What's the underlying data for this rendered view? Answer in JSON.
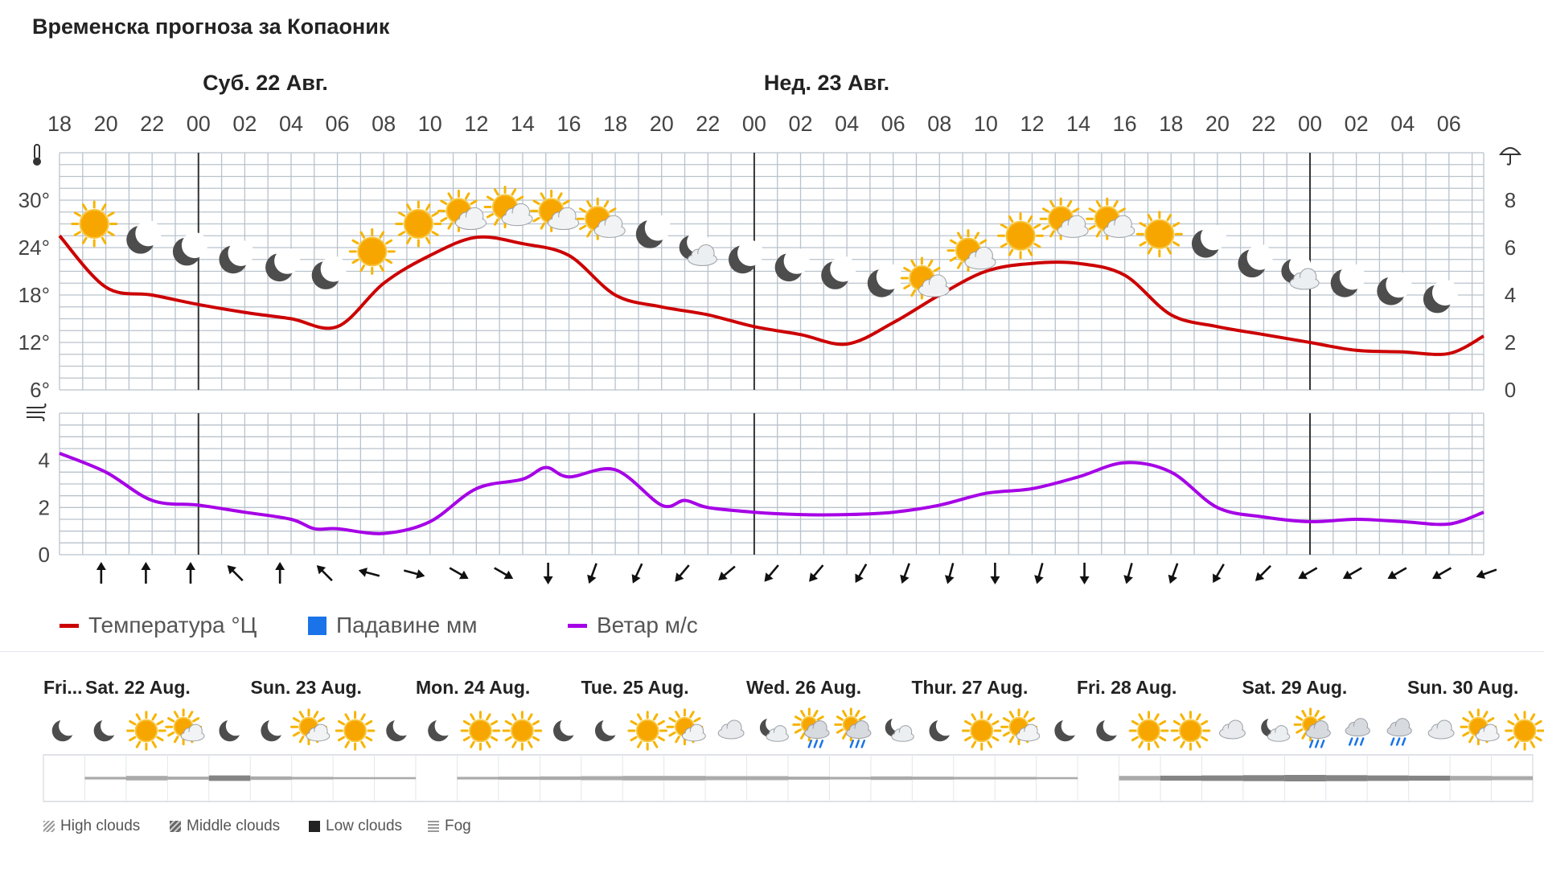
{
  "header": {
    "title": "Временска прогноза за Копаоник"
  },
  "chart_data": [
    {
      "type": "line",
      "name": "temperature",
      "day_labels": [
        {
          "label": "Суб. 22 Авг.",
          "after_hour_index": 3
        },
        {
          "label": "Нед. 23 Авг.",
          "after_hour_index": 15
        }
      ],
      "hour_labels": [
        "18",
        "20",
        "22",
        "00",
        "02",
        "04",
        "06",
        "08",
        "10",
        "12",
        "14",
        "16",
        "18",
        "20",
        "22",
        "00",
        "02",
        "04",
        "06",
        "08",
        "10",
        "12",
        "14",
        "16",
        "18",
        "20",
        "22",
        "00",
        "02",
        "04",
        "06"
      ],
      "x_hours": [
        0,
        2,
        4,
        6,
        8,
        10,
        12,
        14,
        16,
        18,
        20,
        22,
        24,
        26,
        28,
        30,
        32,
        34,
        36,
        38,
        40,
        42,
        44,
        46,
        48,
        50,
        52,
        54,
        56,
        58,
        60,
        61.5
      ],
      "y_temperature": [
        25.5,
        19,
        18,
        16.8,
        15.8,
        15,
        14,
        19.5,
        23,
        25.3,
        24.5,
        23,
        18,
        16.5,
        15.5,
        14,
        13,
        11.8,
        14.5,
        18,
        21,
        22,
        22,
        20.5,
        15.5,
        14,
        13,
        12,
        11,
        10.8,
        10.6,
        12.8
      ],
      "y_left_ticks": [
        "6°",
        "12°",
        "18°",
        "24°",
        "30°"
      ],
      "y_left_range": [
        6,
        36
      ],
      "y_right_ticks": [
        "0",
        "2",
        "4",
        "6",
        "8"
      ],
      "y_right_range": [
        0,
        10
      ],
      "precipitation": [],
      "weather_icons": [
        "sun",
        "moon",
        "moon",
        "moon",
        "moon",
        "moon",
        "sun",
        "sun",
        "sun-cloud",
        "sun-cloud",
        "sun-cloud",
        "sun-cloud",
        "moon",
        "moon-cloud",
        "moon",
        "moon",
        "moon",
        "moon",
        "sun-cloud",
        "sun-cloud",
        "sun",
        "sun-cloud",
        "sun-cloud",
        "sun",
        "moon",
        "moon",
        "moon-cloud",
        "moon",
        "moon",
        "moon"
      ],
      "icon_levels": [
        27,
        25,
        23.5,
        22.5,
        21.5,
        20.5,
        23.5,
        27,
        28,
        28.5,
        28,
        27,
        25.7,
        23.5,
        22.5,
        21.5,
        20.5,
        19.5,
        19.5,
        23,
        25.5,
        27,
        27,
        25.7,
        24.5,
        22,
        20.5,
        19.5,
        18.5,
        17.5
      ]
    },
    {
      "type": "line",
      "name": "wind",
      "x_hours": [
        0,
        2,
        4,
        6,
        8,
        10,
        11,
        12,
        14,
        16,
        18,
        20,
        21,
        22,
        24,
        26,
        27,
        28,
        30,
        32,
        34,
        36,
        38,
        40,
        42,
        44,
        46,
        48,
        50,
        52,
        54,
        56,
        58,
        60,
        61.5
      ],
      "y_wind": [
        4.3,
        3.5,
        2.3,
        2.1,
        1.8,
        1.5,
        1.1,
        1.1,
        0.9,
        1.4,
        2.8,
        3.2,
        3.7,
        3.3,
        3.6,
        2.1,
        2.3,
        2.0,
        1.8,
        1.7,
        1.7,
        1.8,
        2.1,
        2.6,
        2.8,
        3.3,
        3.9,
        3.5,
        2.0,
        1.6,
        1.4,
        1.5,
        1.4,
        1.3,
        1.8
      ],
      "y_ticks": [
        "0",
        "2",
        "4"
      ],
      "y_range": [
        0,
        6
      ],
      "wind_dir_deg": [
        0,
        0,
        0,
        315,
        0,
        315,
        285,
        105,
        120,
        120,
        180,
        200,
        205,
        220,
        230,
        220,
        220,
        210,
        200,
        195,
        180,
        195,
        180,
        195,
        200,
        210,
        225,
        240,
        240,
        240,
        240,
        250
      ]
    }
  ],
  "legend": {
    "temperature": "Температура °Ц",
    "precipitation": "Падавине мм",
    "wind": "Ветар м/с",
    "colors": {
      "temperature": "#cc0000",
      "precipitation": "#1a73e8",
      "wind": "#a600e6"
    }
  },
  "overview": {
    "days": [
      "Fri...",
      "Sat. 22 Aug.",
      "Sun. 23 Aug.",
      "Mon. 24 Aug.",
      "Tue. 25 Aug.",
      "Wed. 26 Aug.",
      "Thur. 27 Aug.",
      "Fri. 28 Aug.",
      "Sat. 29 Aug.",
      "Sun. 30 Aug."
    ],
    "icons": [
      "moon",
      "moon",
      "sun",
      "sun-cloud",
      "moon",
      "moon",
      "sun-cloud",
      "sun",
      "moon",
      "moon",
      "sun",
      "sun",
      "moon",
      "moon",
      "sun",
      "sun-cloud",
      "cloud",
      "moon-cloud",
      "sun-cloud-rain",
      "sun-cloud-rain",
      "moon-cloud",
      "moon",
      "sun",
      "sun-cloud",
      "moon",
      "moon",
      "sun",
      "sun",
      "cloud",
      "moon-cloud",
      "sun-cloud-rain",
      "cloud-rain",
      "cloud-rain",
      "cloud",
      "sun-cloud",
      "sun"
    ],
    "cloud_layers": [
      0,
      0.2,
      0.6,
      0.3,
      0.8,
      0.4,
      0.2,
      0.1,
      0.1,
      0,
      0.2,
      0.3,
      0.4,
      0.5,
      0.6,
      0.6,
      0.5,
      0.5,
      0.3,
      0.2,
      0.4,
      0.3,
      0.2,
      0.2,
      0.1,
      0,
      0.6,
      0.7,
      0.8,
      0.9,
      1,
      0.9,
      0.8,
      0.7,
      0.6,
      0.5
    ],
    "cloud_legend": [
      "High clouds",
      "Middle clouds",
      "Low clouds",
      "Fog"
    ]
  }
}
